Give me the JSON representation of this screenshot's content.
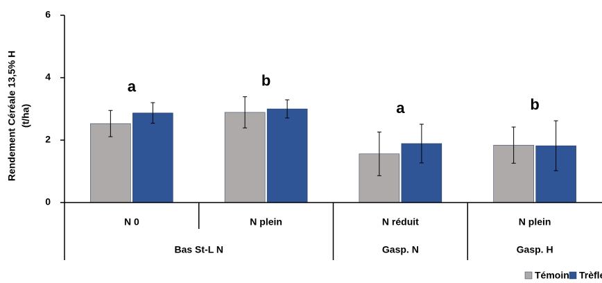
{
  "chart_data": {
    "type": "bar",
    "ylabel": [
      "Rendement Céréale 13,5% H",
      "(t/ha)"
    ],
    "categories": [
      "N 0",
      "N plein",
      "N réduit",
      "N plein"
    ],
    "category_groups": [
      "Bas St-L N",
      "Bas St-L N",
      "Gasp. N",
      "Gasp. H"
    ],
    "annotations": [
      "a",
      "b",
      "a",
      "b"
    ],
    "series": [
      {
        "name": "Témoin",
        "color": "#aeaaaa",
        "values": [
          2.53,
          2.89,
          1.56,
          1.84
        ],
        "errors": [
          0.42,
          0.5,
          0.7,
          0.58
        ]
      },
      {
        "name": "Trèfle",
        "color": "#2f5597",
        "values": [
          2.87,
          3.0,
          1.89,
          1.82
        ],
        "errors": [
          0.33,
          0.29,
          0.62,
          0.8
        ]
      }
    ],
    "ylim": [
      0,
      6
    ],
    "yticks": [
      0,
      2,
      4,
      6
    ],
    "grid": false,
    "legend": "bottom-right"
  }
}
